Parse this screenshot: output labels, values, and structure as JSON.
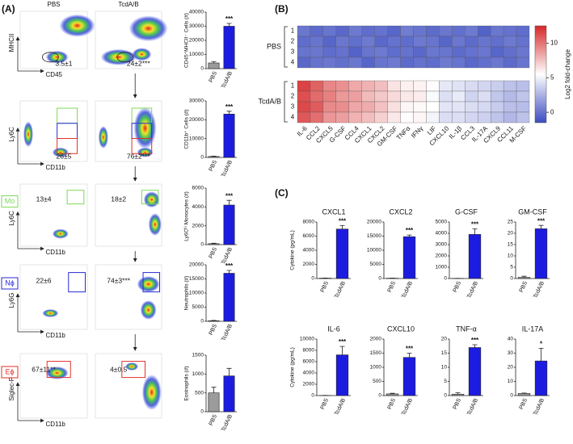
{
  "panel_labels": [
    "(A)",
    "(B)",
    "(C)"
  ],
  "flow": {
    "columns": [
      "PBS",
      "TcdA/B"
    ],
    "rows": [
      {
        "ylabel": "MHCII",
        "xlabel": "CD45",
        "gates": [
          "3.5±1",
          "24±2***"
        ]
      },
      {
        "ylabel": "Ly6C",
        "xlabel": "CD11b",
        "gates": [
          "26±5",
          "76±2***"
        ]
      },
      {
        "population": "Mo",
        "color": "#7ed957",
        "ylabel": "Ly6C",
        "xlabel": "CD11b",
        "gates": [
          "13±4",
          "18±2"
        ]
      },
      {
        "population": "Nϕ",
        "color": "#2a2ad6",
        "ylabel": "Ly6G",
        "xlabel": "CD11b",
        "gates": [
          "22±6",
          "74±3***"
        ]
      },
      {
        "population": "Eϕ",
        "color": "#e0302a",
        "ylabel": "Siglec-F",
        "xlabel": "CD11b",
        "gates": [
          "67±11**",
          "4±0.5"
        ]
      }
    ]
  },
  "chart_data": [
    {
      "type": "bar",
      "ylabel": "CD45⁺MHCII⁻ Cells (#)",
      "categories": [
        "PBS",
        "TcdA/B"
      ],
      "colors": [
        "#9b9b9b",
        "#1c1ce0"
      ],
      "values": [
        4000,
        30000
      ],
      "errors": [
        1000,
        2000
      ],
      "significance": [
        null,
        "***"
      ],
      "ylim": [
        0,
        40000
      ],
      "yticks": [
        0,
        10000,
        20000,
        30000,
        40000
      ]
    },
    {
      "type": "bar",
      "ylabel": "CD11b⁺ Cells (#)",
      "categories": [
        "PBS",
        "TcdA/B"
      ],
      "colors": [
        "#9b9b9b",
        "#1c1ce0"
      ],
      "values": [
        500,
        23000
      ],
      "errors": [
        200,
        1500
      ],
      "significance": [
        null,
        "***"
      ],
      "ylim": [
        0,
        30000
      ],
      "yticks": [
        0,
        10000,
        20000,
        30000
      ]
    },
    {
      "type": "bar",
      "ylabel": "Ly6Cʰⁱ Monocytes (#)",
      "categories": [
        "PBS",
        "TcdA/B"
      ],
      "colors": [
        "#9b9b9b",
        "#1c1ce0"
      ],
      "values": [
        100,
        4200
      ],
      "errors": [
        50,
        500
      ],
      "significance": [
        null,
        "***"
      ],
      "ylim": [
        0,
        6000
      ],
      "yticks": [
        0,
        2000,
        4000,
        6000
      ]
    },
    {
      "type": "bar",
      "ylabel": "Neutrophils (#)",
      "categories": [
        "PBS",
        "TcdA/B"
      ],
      "colors": [
        "#9b9b9b",
        "#1c1ce0"
      ],
      "values": [
        200,
        17000
      ],
      "errors": [
        100,
        1000
      ],
      "significance": [
        null,
        "***"
      ],
      "ylim": [
        0,
        20000
      ],
      "yticks": [
        0,
        5000,
        10000,
        15000,
        20000
      ]
    },
    {
      "type": "bar",
      "ylabel": "Eosinophils (#)",
      "categories": [
        "PBS",
        "TcdA/B"
      ],
      "colors": [
        "#9b9b9b",
        "#1c1ce0"
      ],
      "values": [
        500,
        950
      ],
      "errors": [
        150,
        200
      ],
      "ylim": [
        0,
        1500
      ],
      "yticks": [
        0,
        500,
        1000,
        1500
      ]
    },
    {
      "type": "heatmap",
      "columns": [
        "IL-6",
        "CCL2",
        "CXCL5",
        "G-CSF",
        "CCL4",
        "CXCL1",
        "CXCL2",
        "GM-CSF",
        "TNFα",
        "IFNγ",
        "LIF",
        "CXCL10",
        "IL-1β",
        "CCL3",
        "IL-17A",
        "CXCL9",
        "CCL11",
        "M-CSF"
      ],
      "groups": [
        {
          "name": "PBS",
          "rows": [
            "1",
            "2",
            "3",
            "4"
          ]
        },
        {
          "name": "TcdA/B",
          "rows": [
            "1",
            "2",
            "3",
            "4"
          ]
        }
      ],
      "values": [
        [
          0.2,
          -0.3,
          0.1,
          -0.4,
          0.3,
          -0.2,
          0.0,
          -0.5,
          0.4,
          0.1,
          -0.3,
          0.2,
          -0.1,
          0.3,
          -0.6,
          0.2,
          0.0,
          -0.2
        ],
        [
          -0.2,
          0.1,
          -0.5,
          0.2,
          -0.1,
          0.3,
          -0.4,
          0.0,
          -0.2,
          0.3,
          0.1,
          -0.5,
          0.2,
          -0.3,
          0.1,
          -0.1,
          0.3,
          0.0
        ],
        [
          0.1,
          0.2,
          -0.2,
          0.0,
          -0.6,
          0.1,
          0.3,
          -0.2,
          0.0,
          -0.4,
          0.2,
          0.1,
          -0.3,
          0.0,
          0.2,
          -0.5,
          -0.1,
          0.2
        ],
        [
          -0.4,
          0.0,
          0.2,
          -0.1,
          0.2,
          -0.5,
          0.1,
          0.3,
          -0.3,
          0.0,
          -0.2,
          0.3,
          0.1,
          -0.4,
          -0.1,
          0.2,
          -0.3,
          0.1
        ],
        [
          11.6,
          10.6,
          9.4,
          9.1,
          8.3,
          8.0,
          7.6,
          6.4,
          6.0,
          5.9,
          5.6,
          4.6,
          4.4,
          4.1,
          3.9,
          3.6,
          3.1,
          3.0
        ],
        [
          11.2,
          10.3,
          9.6,
          8.8,
          8.6,
          7.7,
          7.3,
          6.7,
          6.2,
          6.1,
          5.3,
          4.3,
          4.7,
          3.8,
          4.2,
          3.3,
          2.8,
          3.2
        ],
        [
          11.4,
          10.8,
          9.3,
          9.2,
          8.4,
          8.2,
          7.5,
          6.5,
          5.8,
          5.7,
          5.5,
          4.5,
          4.5,
          4.2,
          4.0,
          3.5,
          3.0,
          2.9
        ],
        [
          10.9,
          10.2,
          8.9,
          8.6,
          8.0,
          7.6,
          7.0,
          6.2,
          5.6,
          5.8,
          5.1,
          4.2,
          4.3,
          3.9,
          3.7,
          3.2,
          2.7,
          3.1
        ]
      ],
      "colormap": [
        "#3b4cc0",
        "#ffffff",
        "#d62728"
      ],
      "zlim": [
        -1.5,
        12.5
      ],
      "zticks": [
        0,
        5,
        10
      ],
      "zlabel": "Log2 fold-change"
    },
    {
      "type": "bar",
      "title": "CXCL1",
      "ylabel": "Cytokine (pg/mL)",
      "categories": [
        "PBS",
        "TcdA/B"
      ],
      "colors": [
        "#9b9b9b",
        "#1c1ce0"
      ],
      "values": [
        50,
        7000
      ],
      "errors": [
        20,
        500
      ],
      "significance": [
        null,
        "***"
      ],
      "ylim": [
        0,
        8000
      ],
      "yticks": [
        0,
        2000,
        4000,
        6000,
        8000
      ]
    },
    {
      "type": "bar",
      "title": "CXCL2",
      "categories": [
        "PBS",
        "TcdA/B"
      ],
      "colors": [
        "#9b9b9b",
        "#1c1ce0"
      ],
      "values": [
        100,
        14800
      ],
      "errors": [
        50,
        600
      ],
      "significance": [
        null,
        "***"
      ],
      "ylim": [
        0,
        20000
      ],
      "yticks": [
        0,
        5000,
        10000,
        15000,
        20000
      ]
    },
    {
      "type": "bar",
      "title": "G-CSF",
      "categories": [
        "PBS",
        "TcdA/B"
      ],
      "colors": [
        "#9b9b9b",
        "#1c1ce0"
      ],
      "values": [
        10,
        3900
      ],
      "errors": [
        5,
        500
      ],
      "significance": [
        null,
        "***"
      ],
      "ylim": [
        0,
        5000
      ],
      "yticks": [
        0,
        1000,
        2000,
        3000,
        4000,
        5000
      ]
    },
    {
      "type": "bar",
      "title": "GM-CSF",
      "categories": [
        "PBS",
        "TcdA/B"
      ],
      "colors": [
        "#9b9b9b",
        "#1c1ce0"
      ],
      "values": [
        0.5,
        22
      ],
      "errors": [
        0.5,
        1.5
      ],
      "significance": [
        null,
        "***"
      ],
      "ylim": [
        0,
        25
      ],
      "yticks": [
        0,
        5,
        10,
        15,
        20,
        25
      ]
    },
    {
      "type": "bar",
      "title": "IL-6",
      "ylabel": "Cytokine (pg/mL)",
      "categories": [
        "PBS",
        "TcdA/B"
      ],
      "colors": [
        "#9b9b9b",
        "#1c1ce0"
      ],
      "values": [
        20,
        7200
      ],
      "errors": [
        10,
        1500
      ],
      "significance": [
        null,
        "***"
      ],
      "ylim": [
        0,
        10000
      ],
      "yticks": [
        0,
        2000,
        4000,
        6000,
        8000,
        10000
      ]
    },
    {
      "type": "bar",
      "title": "CXCL10",
      "categories": [
        "PBS",
        "TcdA/B"
      ],
      "colors": [
        "#9b9b9b",
        "#1c1ce0"
      ],
      "values": [
        60,
        1350
      ],
      "errors": [
        20,
        150
      ],
      "significance": [
        null,
        "***"
      ],
      "ylim": [
        0,
        2000
      ],
      "yticks": [
        0,
        500,
        1000,
        1500,
        2000
      ]
    },
    {
      "type": "bar",
      "title": "TNF-α",
      "categories": [
        "PBS",
        "TcdA/B"
      ],
      "colors": [
        "#9b9b9b",
        "#1c1ce0"
      ],
      "values": [
        0.5,
        17
      ],
      "errors": [
        0.5,
        1
      ],
      "significance": [
        null,
        "***"
      ],
      "ylim": [
        0,
        20
      ],
      "yticks": [
        0,
        5,
        10,
        15,
        20
      ]
    },
    {
      "type": "bar",
      "title": "IL-17A",
      "categories": [
        "PBS",
        "TcdA/B"
      ],
      "colors": [
        "#9b9b9b",
        "#1c1ce0"
      ],
      "values": [
        1.5,
        24.5
      ],
      "errors": [
        0.3,
        9
      ],
      "significance": [
        null,
        "*"
      ],
      "ylim": [
        0,
        40
      ],
      "yticks": [
        0,
        10,
        20,
        30,
        40
      ]
    }
  ]
}
